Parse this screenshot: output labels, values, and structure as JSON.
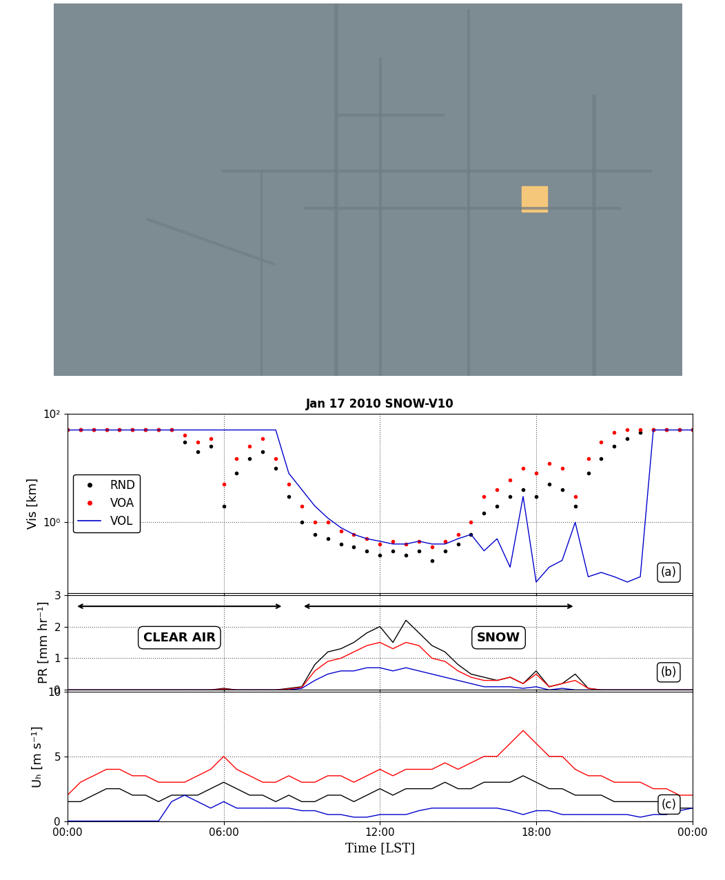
{
  "chart_data": [
    {
      "type": "line",
      "title": "Jan 17 2010 SNOW-V10",
      "ylabel": "Vis [km]",
      "log": "y",
      "grid": true,
      "tick_labels": "y",
      "legend": "center left",
      "annotations": [
        {
          "text": "(a)"
        }
      ],
      "xlim": [
        0,
        24
      ],
      "xticks": [
        {
          "value": 0,
          "label": "00:00"
        },
        {
          "value": 6,
          "label": "06:00"
        },
        {
          "value": 12,
          "label": "12:00"
        },
        {
          "value": 18,
          "label": "18:00"
        },
        {
          "value": 24,
          "label": "00:00"
        }
      ],
      "ylim": [
        0.05,
        100
      ],
      "yticks": [
        {
          "value": 1,
          "label": "10⁰"
        },
        {
          "value": 100,
          "label": "10²"
        }
      ],
      "x": [
        0,
        0.5,
        1,
        1.5,
        2,
        2.5,
        3,
        3.5,
        4,
        4.5,
        5,
        5.5,
        6,
        6.5,
        7,
        7.5,
        8,
        8.5,
        9,
        9.5,
        10,
        10.5,
        11,
        11.5,
        12,
        12.5,
        13,
        13.5,
        14,
        14.5,
        15,
        15.5,
        16,
        16.5,
        17,
        17.5,
        18,
        18.5,
        19,
        19.5,
        20,
        20.5,
        21,
        21.5,
        22,
        22.5,
        23,
        23.5,
        24
      ],
      "series": [
        {
          "name": "RND",
          "type": "scatter",
          "marker": "dot",
          "color": "#000000",
          "values": [
            50,
            50,
            50,
            50,
            50,
            50,
            50,
            50,
            50,
            30,
            20,
            25,
            2,
            8,
            15,
            20,
            10,
            3,
            1,
            0.6,
            0.5,
            0.4,
            0.35,
            0.3,
            0.25,
            0.3,
            0.25,
            0.3,
            0.2,
            0.3,
            0.4,
            0.6,
            1.5,
            2,
            3,
            4,
            3,
            5,
            4,
            2,
            8,
            15,
            25,
            35,
            45,
            50,
            50,
            50,
            50
          ]
        },
        {
          "name": "VOA",
          "type": "scatter",
          "marker": "dot",
          "color": "#ff0000",
          "values": [
            50,
            50,
            50,
            50,
            50,
            50,
            50,
            50,
            50,
            40,
            30,
            35,
            5,
            15,
            25,
            35,
            15,
            5,
            2,
            1,
            1,
            0.7,
            0.6,
            0.5,
            0.4,
            0.45,
            0.4,
            0.45,
            0.35,
            0.45,
            0.6,
            1,
            3,
            4,
            6,
            10,
            8,
            12,
            10,
            3,
            15,
            30,
            45,
            50,
            50,
            50,
            50,
            50,
            50
          ]
        },
        {
          "name": "VOL",
          "type": "line",
          "line_style": "solid",
          "color": "#0000cc",
          "values": [
            50,
            50,
            50,
            50,
            50,
            50,
            50,
            50,
            50,
            50,
            50,
            50,
            50,
            50,
            50,
            50,
            50,
            8,
            4,
            2,
            1.2,
            0.8,
            0.6,
            0.5,
            0.45,
            0.4,
            0.4,
            0.45,
            0.4,
            0.4,
            0.5,
            0.6,
            0.3,
            0.5,
            0.15,
            3,
            0.08,
            0.15,
            0.2,
            1,
            0.1,
            0.12,
            0.1,
            0.08,
            0.1,
            50,
            50,
            50,
            50
          ]
        }
      ]
    },
    {
      "type": "line",
      "ylabel": "PR [mm hr⁻¹]",
      "grid": true,
      "tick_labels": "y",
      "annotations": [
        {
          "text": "(b)"
        },
        {
          "text": "CLEAR AIR",
          "x_range": [
            0.3,
            8.3
          ]
        },
        {
          "text": "SNOW",
          "x_range": [
            9.0,
            19.5
          ]
        }
      ],
      "xlim": [
        0,
        24
      ],
      "xticks": [
        {
          "value": 0,
          "label": "00:00"
        },
        {
          "value": 6,
          "label": "06:00"
        },
        {
          "value": 12,
          "label": "12:00"
        },
        {
          "value": 18,
          "label": "18:00"
        },
        {
          "value": 24,
          "label": "00:00"
        }
      ],
      "ylim": [
        0,
        3
      ],
      "yticks": [
        0,
        1,
        2,
        3
      ],
      "x": [
        0,
        0.5,
        1,
        1.5,
        2,
        2.5,
        3,
        3.5,
        4,
        4.5,
        5,
        5.5,
        6,
        6.5,
        7,
        7.5,
        8,
        8.5,
        9,
        9.5,
        10,
        10.5,
        11,
        11.5,
        12,
        12.5,
        13,
        13.5,
        14,
        14.5,
        15,
        15.5,
        16,
        16.5,
        17,
        17.5,
        18,
        18.5,
        19,
        19.5,
        20,
        20.5,
        21,
        21.5,
        22,
        22.5,
        23,
        23.5,
        24
      ],
      "series": [
        {
          "type": "line",
          "color": "#000000",
          "values": [
            0,
            0,
            0,
            0,
            0,
            0,
            0,
            0,
            0,
            0,
            0,
            0,
            0.05,
            0,
            0,
            0,
            0,
            0.05,
            0.1,
            0.8,
            1.2,
            1.3,
            1.5,
            1.8,
            2.0,
            1.5,
            2.2,
            1.8,
            1.4,
            1.2,
            0.8,
            0.5,
            0.4,
            0.3,
            0.4,
            0.2,
            0.6,
            0.1,
            0.2,
            0.5,
            0.05,
            0,
            0,
            0,
            0,
            0,
            0,
            0,
            0
          ]
        },
        {
          "type": "line",
          "color": "#ff0000",
          "values": [
            0,
            0,
            0,
            0,
            0,
            0,
            0,
            0,
            0,
            0,
            0,
            0,
            0.03,
            0,
            0,
            0,
            0,
            0.03,
            0.08,
            0.6,
            0.9,
            1.0,
            1.2,
            1.4,
            1.5,
            1.3,
            1.5,
            1.4,
            1.0,
            0.9,
            0.6,
            0.4,
            0.3,
            0.3,
            0.4,
            0.2,
            0.5,
            0.1,
            0.2,
            0.3,
            0.05,
            0,
            0,
            0,
            0,
            0,
            0,
            0,
            0
          ]
        },
        {
          "type": "line",
          "color": "#0000cc",
          "values": [
            0,
            0,
            0,
            0,
            0,
            0,
            0,
            0,
            0,
            0,
            0,
            0,
            0,
            0,
            0,
            0,
            0,
            0,
            0.05,
            0.3,
            0.5,
            0.6,
            0.6,
            0.7,
            0.7,
            0.6,
            0.7,
            0.6,
            0.5,
            0.4,
            0.3,
            0.2,
            0.1,
            0.1,
            0.1,
            0.05,
            0.1,
            0,
            0.05,
            0,
            0,
            0,
            0,
            0,
            0,
            0,
            0,
            0,
            0
          ]
        }
      ]
    },
    {
      "type": "line",
      "ylabel": "Uₕ [m s⁻¹]",
      "xlabel": "Time [LST]",
      "grid": true,
      "tick_labels": true,
      "annotations": [
        {
          "text": "(c)"
        }
      ],
      "xlim": [
        0,
        24
      ],
      "xticks": [
        {
          "value": 0,
          "label": "00:00"
        },
        {
          "value": 6,
          "label": "06:00"
        },
        {
          "value": 12,
          "label": "12:00"
        },
        {
          "value": 18,
          "label": "18:00"
        },
        {
          "value": 24,
          "label": "00:00"
        }
      ],
      "ylim": [
        0,
        10
      ],
      "yticks": [
        0,
        5,
        10
      ],
      "x": [
        0,
        0.5,
        1,
        1.5,
        2,
        2.5,
        3,
        3.5,
        4,
        4.5,
        5,
        5.5,
        6,
        6.5,
        7,
        7.5,
        8,
        8.5,
        9,
        9.5,
        10,
        10.5,
        11,
        11.5,
        12,
        12.5,
        13,
        13.5,
        14,
        14.5,
        15,
        15.5,
        16,
        16.5,
        17,
        17.5,
        18,
        18.5,
        19,
        19.5,
        20,
        20.5,
        21,
        21.5,
        22,
        22.5,
        23,
        23.5,
        24
      ],
      "series": [
        {
          "type": "line",
          "color": "#ff0000",
          "values": [
            2,
            3,
            3.5,
            4,
            4,
            3.5,
            3.5,
            3,
            3,
            3,
            3.5,
            4,
            5,
            4,
            3.5,
            3,
            3,
            3.5,
            3,
            3,
            3.5,
            3.5,
            3,
            3.5,
            4,
            3.5,
            4,
            4,
            4,
            4.5,
            4,
            4.5,
            5,
            5,
            6,
            7,
            6,
            5,
            5,
            4,
            3.5,
            3.5,
            3,
            3,
            3,
            2.5,
            2.5,
            2,
            2
          ]
        },
        {
          "type": "line",
          "color": "#000000",
          "values": [
            1.5,
            1.5,
            2,
            2.5,
            2.5,
            2,
            2,
            1.5,
            2,
            2,
            2,
            2.5,
            3,
            2.5,
            2,
            2,
            1.5,
            2,
            1.5,
            1.5,
            2,
            2,
            1.5,
            2,
            2.5,
            2,
            2.5,
            2.5,
            2.5,
            3,
            2.5,
            2.5,
            3,
            3,
            3,
            3.5,
            3,
            2.5,
            2.5,
            2,
            2,
            2,
            1.5,
            1.5,
            1.5,
            1.5,
            1.5,
            1,
            1
          ]
        },
        {
          "type": "line",
          "color": "#0000cc",
          "values": [
            0,
            0,
            0,
            0,
            0,
            0,
            0,
            0,
            1.5,
            2,
            1.5,
            1,
            1.5,
            1,
            1,
            1,
            1,
            1,
            0.8,
            0.8,
            0.5,
            0.5,
            0.3,
            0.3,
            0.5,
            0.5,
            0.5,
            0.8,
            1,
            1,
            1,
            1,
            1,
            1,
            0.8,
            0.5,
            0.8,
            0.8,
            0.5,
            0.5,
            0.5,
            0.5,
            0.5,
            0.5,
            0.3,
            0.5,
            0.5,
            0.8,
            1
          ]
        }
      ]
    }
  ]
}
